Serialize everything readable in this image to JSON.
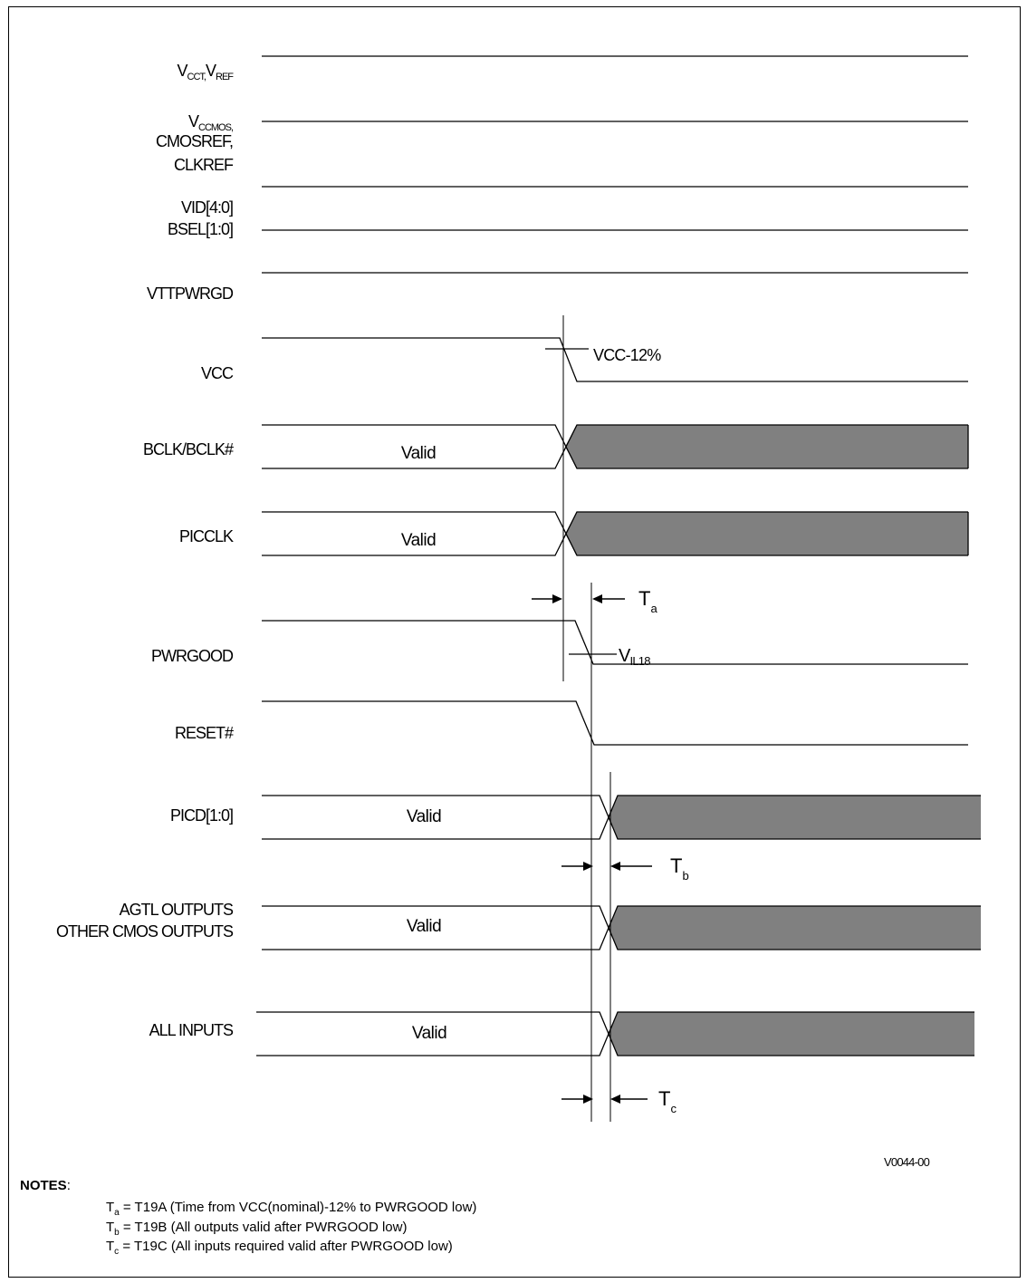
{
  "signals": {
    "vcct_vref": {
      "v1": "V",
      "v1_sub": "CCT,",
      "v2": "V",
      "v2_sub": "REF"
    },
    "vccmos": {
      "v": "V",
      "v_sub": "CCMOS,",
      "line2": "CMOSREF,",
      "line3": "CLKREF"
    },
    "vid": "VID[4:0]",
    "bsel": "BSEL[1:0]",
    "vttpwrgd": "VTTPWRGD",
    "vcc": "VCC",
    "bclk": "BCLK/BCLK#",
    "picclk": "PICCLK",
    "pwrgood": "PWRGOOD",
    "reset": "RESET#",
    "picd": "PICD[1:0]",
    "agtl": {
      "line1": "AGTL OUTPUTS",
      "line2": "OTHER CMOS OUTPUTS"
    },
    "all_inputs": "ALL INPUTS"
  },
  "valid_label": "Valid",
  "annotations": {
    "vcc_threshold": "VCC-12%",
    "vil": {
      "v": "V",
      "sub": "IL18"
    },
    "ta": {
      "t": "T",
      "sub": "a"
    },
    "tb": {
      "t": "T",
      "sub": "b"
    },
    "tc": {
      "t": "T",
      "sub": "c"
    }
  },
  "figure_id": "V0044-00",
  "notes": {
    "title": "NOTES",
    "items": [
      {
        "t": "T",
        "sub": "a",
        "text": " = T19A (Time from VCC(nominal)-12% to PWRGOOD low)"
      },
      {
        "t": "T",
        "sub": "b",
        "text": " = T19B (All outputs valid after PWRGOOD low)"
      },
      {
        "t": "T",
        "sub": "c",
        "text": " = T19C (All inputs required valid after PWRGOOD low)"
      }
    ]
  },
  "colors": {
    "invalid_fill": "#808080",
    "line": "#000000"
  }
}
